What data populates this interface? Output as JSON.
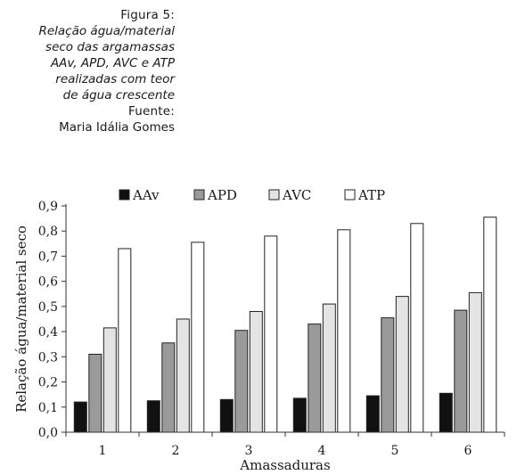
{
  "caption": {
    "figure_label": "Figura 5:",
    "title_lines": [
      "Relação água/material",
      "seco das argamassas",
      "AAv, APD, AVC e ATP",
      "realizadas com teor",
      "de água crescente"
    ],
    "source_label": "Fuente:",
    "source_name": "Maria Idália Gomes"
  },
  "chart_data": {
    "type": "bar",
    "categories": [
      "1",
      "2",
      "3",
      "4",
      "5",
      "6"
    ],
    "series": [
      {
        "name": "AAv",
        "color": "#111111",
        "values": [
          0.12,
          0.125,
          0.13,
          0.135,
          0.145,
          0.155
        ]
      },
      {
        "name": "APD",
        "color": "#9a9a9a",
        "values": [
          0.31,
          0.355,
          0.405,
          0.43,
          0.455,
          0.485
        ]
      },
      {
        "name": "AVC",
        "color": "#e4e4e4",
        "values": [
          0.415,
          0.45,
          0.48,
          0.51,
          0.54,
          0.555
        ]
      },
      {
        "name": "ATP",
        "color": "#ffffff",
        "values": [
          0.73,
          0.755,
          0.78,
          0.805,
          0.83,
          0.855
        ]
      }
    ],
    "xlabel": "Amassaduras",
    "ylabel": "Relação água/material seco",
    "ylim": [
      0,
      0.9
    ],
    "yticks": [
      "0,0",
      "0,1",
      "0,2",
      "0,3",
      "0,4",
      "0,5",
      "0,6",
      "0,7",
      "0,8",
      "0,9"
    ],
    "grid": false,
    "legend": "top"
  }
}
